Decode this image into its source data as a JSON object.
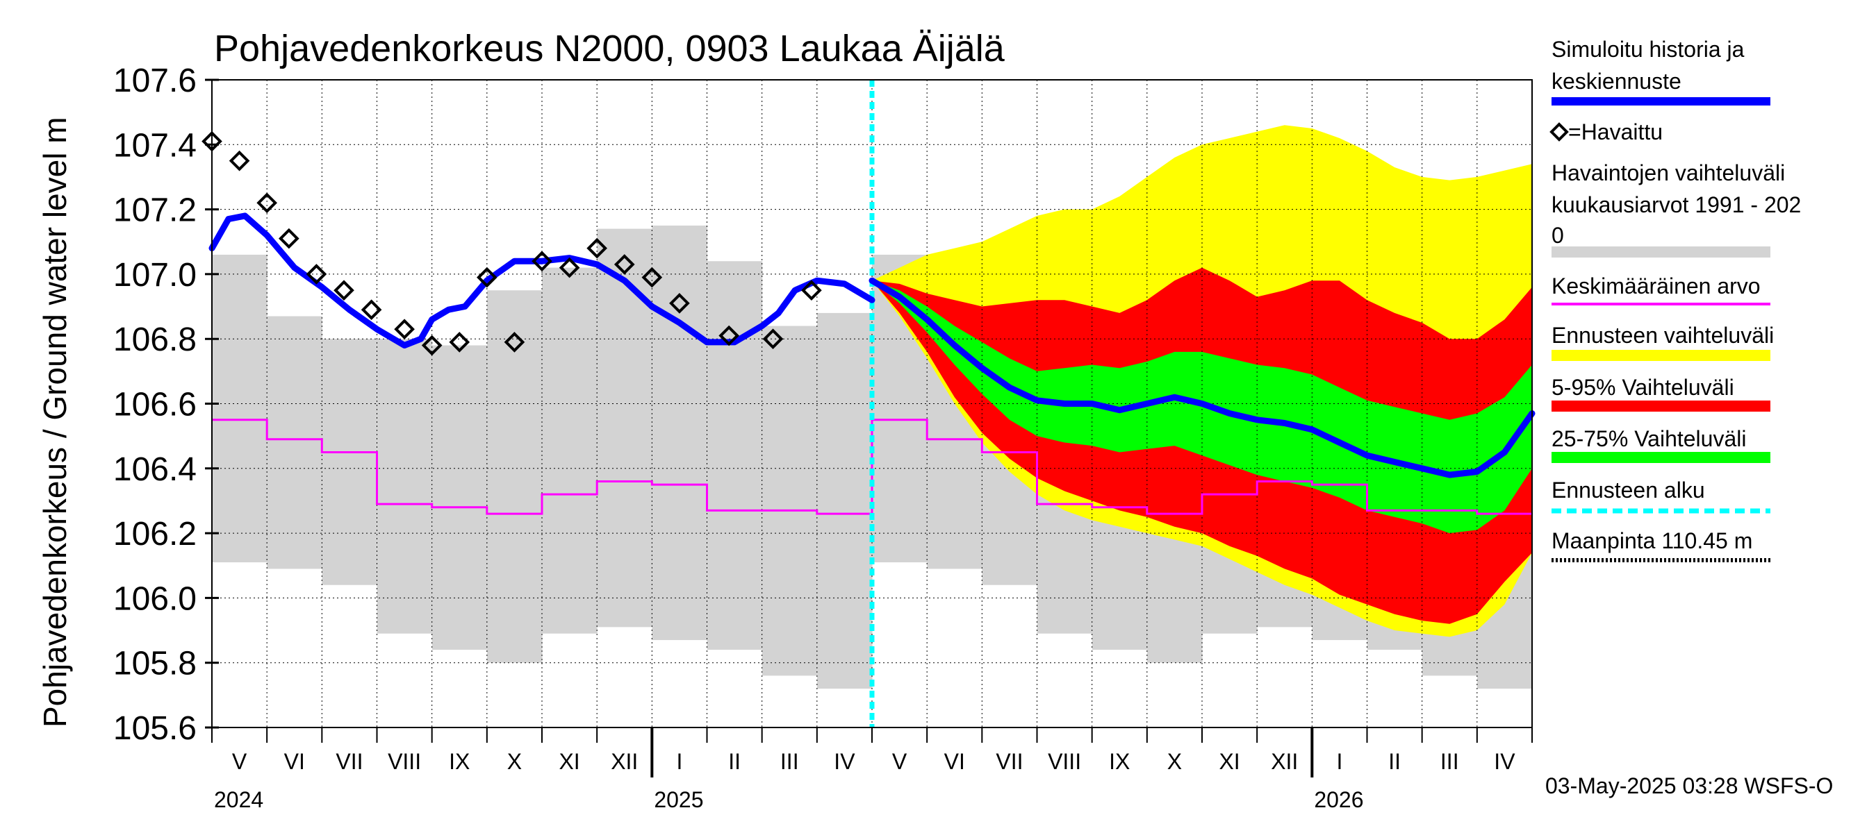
{
  "chart_data": {
    "type": "line",
    "title": "Pohjavedenkorkeus N2000, 0903 Laukaa Äijälä",
    "ylabel": "Pohjavedenkorkeus / Ground water level   m",
    "ylim": [
      105.6,
      107.6
    ],
    "yticks": [
      "105.6",
      "105.8",
      "106.0",
      "106.2",
      "106.4",
      "106.6",
      "106.8",
      "107.0",
      "107.2",
      "107.4",
      "107.6"
    ],
    "months": [
      "V",
      "VI",
      "VII",
      "VIII",
      "IX",
      "X",
      "XI",
      "XII",
      "I",
      "II",
      "III",
      "IV",
      "V",
      "VI",
      "VII",
      "VIII",
      "IX",
      "X",
      "XI",
      "XII",
      "I",
      "II",
      "III",
      "IV"
    ],
    "years": [
      "2024",
      "2025",
      "2026"
    ],
    "grid": true,
    "legend_position": "right",
    "footer": "03-May-2025 03:28 WSFS-O",
    "legend": [
      {
        "label": "Simuloitu historia ja",
        "label2": "keskiennuste",
        "color": "#0000ff",
        "kind": "line"
      },
      {
        "label": "=Havaittu",
        "color": "#000000",
        "kind": "marker"
      },
      {
        "label": "Havaintojen vaihteluväli",
        "label2": " kuukausiarvot 1991 - 202",
        "label3": "0",
        "color": "#d3d3d3",
        "kind": "band"
      },
      {
        "label": "Keskimääräinen arvo",
        "color": "#ff00ff",
        "kind": "line-thin"
      },
      {
        "label": "Ennusteen vaihteluväli",
        "color": "#ffff00",
        "kind": "band"
      },
      {
        "label": "5-95% Vaihteluväli",
        "color": "#ff0000",
        "kind": "band"
      },
      {
        "label": "25-75% Vaihteluväli",
        "color": "#00ff00",
        "kind": "band"
      },
      {
        "label": "Ennusteen alku",
        "color": "#00ffff",
        "kind": "dashed"
      },
      {
        "label": "Maanpinta 110.45 m",
        "color": "#000000",
        "kind": "dotted"
      }
    ],
    "monthly_range_min": [
      106.11,
      106.09,
      106.04,
      105.89,
      105.84,
      105.8,
      105.89,
      105.91,
      105.87,
      105.84,
      105.76,
      105.72,
      106.11,
      106.09,
      106.04,
      105.89,
      105.84,
      105.8,
      105.89,
      105.91,
      105.87,
      105.84,
      105.76,
      105.72
    ],
    "monthly_range_max": [
      107.06,
      106.87,
      106.8,
      106.8,
      106.78,
      106.95,
      107.02,
      107.14,
      107.15,
      107.04,
      106.84,
      106.88,
      107.06,
      106.87,
      106.8,
      106.8,
      106.78,
      106.95,
      107.02,
      107.14,
      107.15,
      107.04,
      106.84,
      106.88
    ],
    "monthly_mean": [
      106.55,
      106.49,
      106.45,
      106.29,
      106.28,
      106.26,
      106.32,
      106.36,
      106.35,
      106.27,
      106.27,
      106.26,
      106.55,
      106.49,
      106.45,
      106.29,
      106.28,
      106.26,
      106.32,
      106.36,
      106.35,
      106.27,
      106.27,
      106.26
    ],
    "simulated_series": {
      "x": [
        0,
        0.3,
        0.6,
        1.0,
        1.5,
        2.0,
        2.5,
        3.0,
        3.5,
        3.8,
        4.0,
        4.3,
        4.6,
        5.0,
        5.5,
        6.0,
        6.5,
        7.0,
        7.5,
        8.0,
        8.5,
        9.0,
        9.5,
        10.0,
        10.3,
        10.6,
        11.0,
        11.5,
        12.0
      ],
      "y": [
        107.08,
        107.17,
        107.18,
        107.12,
        107.02,
        106.96,
        106.89,
        106.83,
        106.78,
        106.8,
        106.86,
        106.89,
        106.9,
        106.98,
        107.04,
        107.04,
        107.05,
        107.03,
        106.98,
        106.9,
        106.85,
        106.79,
        106.79,
        106.84,
        106.88,
        106.95,
        106.98,
        106.97,
        106.92
      ]
    },
    "observed": {
      "x": [
        0.0,
        0.5,
        1.0,
        1.4,
        1.9,
        2.4,
        2.9,
        3.5,
        4.0,
        4.5,
        5.0,
        5.5,
        6.0,
        6.5,
        7.0,
        7.5,
        8.0,
        8.5,
        9.4,
        10.2,
        10.9
      ],
      "y": [
        107.41,
        107.35,
        107.22,
        107.11,
        107.0,
        106.95,
        106.89,
        106.83,
        106.78,
        106.79,
        106.99,
        106.79,
        107.04,
        107.02,
        107.08,
        107.03,
        106.99,
        106.91,
        106.81,
        106.8,
        106.95
      ]
    },
    "forecast_start_x": 12.0,
    "forecast_x": [
      12.0,
      12.5,
      13.0,
      13.5,
      14.0,
      14.5,
      15.0,
      15.5,
      16.0,
      16.5,
      17.0,
      17.5,
      18.0,
      18.5,
      19.0,
      19.5,
      20.0,
      20.5,
      21.0,
      21.5,
      22.0,
      22.5,
      23.0,
      23.5,
      24.0
    ],
    "forecast_median": [
      106.98,
      106.93,
      106.86,
      106.78,
      106.71,
      106.65,
      106.61,
      106.6,
      106.6,
      106.58,
      106.6,
      106.62,
      106.6,
      106.57,
      106.55,
      106.54,
      106.52,
      106.48,
      106.44,
      106.42,
      106.4,
      106.38,
      106.39,
      106.45,
      106.57
    ],
    "forecast_p25": [
      106.98,
      106.91,
      106.82,
      106.72,
      106.63,
      106.55,
      106.5,
      106.48,
      106.47,
      106.45,
      106.46,
      106.47,
      106.44,
      106.41,
      106.38,
      106.36,
      106.34,
      106.31,
      106.27,
      106.25,
      106.23,
      106.2,
      106.21,
      106.27,
      106.4
    ],
    "forecast_p75": [
      106.98,
      106.95,
      106.9,
      106.84,
      106.79,
      106.74,
      106.7,
      106.71,
      106.72,
      106.71,
      106.73,
      106.76,
      106.76,
      106.74,
      106.72,
      106.71,
      106.69,
      106.65,
      106.61,
      106.59,
      106.57,
      106.55,
      106.57,
      106.62,
      106.72
    ],
    "forecast_p05": [
      106.98,
      106.88,
      106.76,
      106.62,
      106.51,
      106.43,
      106.37,
      106.33,
      106.3,
      106.27,
      106.25,
      106.22,
      106.2,
      106.16,
      106.13,
      106.09,
      106.06,
      106.01,
      105.98,
      105.95,
      105.93,
      105.92,
      105.95,
      106.05,
      106.14
    ],
    "forecast_p95": [
      106.98,
      106.97,
      106.94,
      106.92,
      106.9,
      106.91,
      106.92,
      106.92,
      106.9,
      106.88,
      106.92,
      106.98,
      107.02,
      106.98,
      106.93,
      106.95,
      106.98,
      106.98,
      106.92,
      106.88,
      106.85,
      106.8,
      106.8,
      106.86,
      106.96
    ],
    "forecast_min": [
      106.98,
      106.87,
      106.74,
      106.6,
      106.48,
      106.39,
      106.32,
      106.27,
      106.24,
      106.22,
      106.2,
      106.18,
      106.16,
      106.12,
      106.08,
      106.04,
      106.01,
      105.97,
      105.93,
      105.9,
      105.89,
      105.88,
      105.9,
      105.98,
      106.14
    ],
    "forecast_max": [
      106.98,
      107.02,
      107.06,
      107.08,
      107.1,
      107.14,
      107.18,
      107.2,
      107.2,
      107.24,
      107.3,
      107.36,
      107.4,
      107.42,
      107.44,
      107.46,
      107.45,
      107.42,
      107.38,
      107.33,
      107.3,
      107.29,
      107.3,
      107.32,
      107.34
    ]
  }
}
